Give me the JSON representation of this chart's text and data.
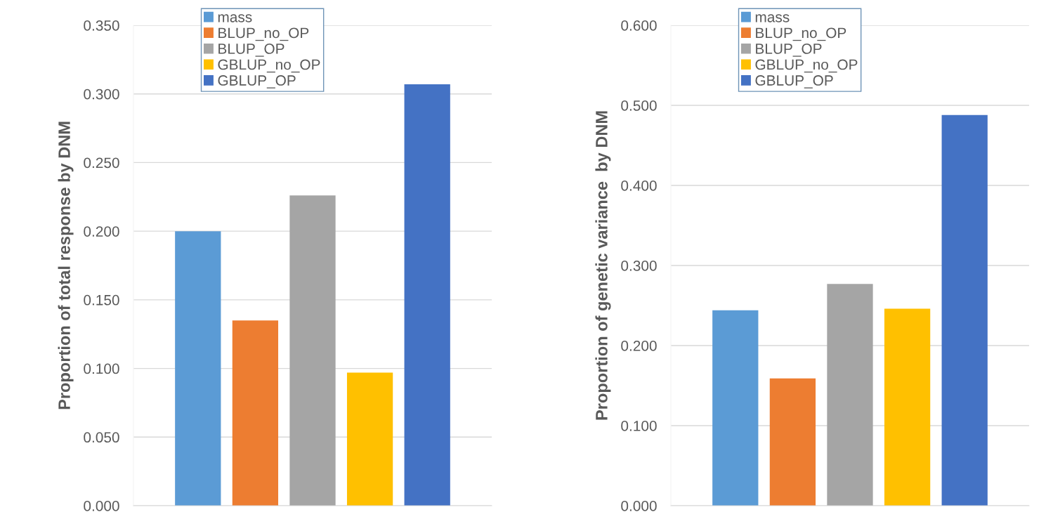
{
  "chart_data": [
    {
      "type": "bar",
      "ylabel": "Proportion of total response by DNM",
      "categories": [
        null
      ],
      "ylim": [
        0,
        0.35
      ],
      "yticks": [
        {
          "value": 0,
          "label": "0.000"
        },
        {
          "value": 0.05,
          "label": "0.050"
        },
        {
          "value": 0.1,
          "label": "0.100"
        },
        {
          "value": 0.15,
          "label": "0.150"
        },
        {
          "value": 0.2,
          "label": "0.200"
        },
        {
          "value": 0.25,
          "label": "0.250"
        },
        {
          "value": 0.3,
          "label": "0.300"
        },
        {
          "value": 0.35,
          "label": "0.350"
        }
      ],
      "grid": "y",
      "legend": "top",
      "series": [
        {
          "name": "mass",
          "color": "#5b9bd5",
          "values": [
            0.2
          ]
        },
        {
          "name": "BLUP_no_OP",
          "color": "#ed7d31",
          "values": [
            0.135
          ]
        },
        {
          "name": "BLUP_OP",
          "color": "#a5a5a5",
          "values": [
            0.226
          ]
        },
        {
          "name": "GBLUP_no_OP",
          "color": "#ffc000",
          "values": [
            0.097
          ]
        },
        {
          "name": "GBLUP_OP",
          "color": "#4472c4",
          "values": [
            0.307
          ]
        }
      ]
    },
    {
      "type": "bar",
      "ylabel": "Proportion of genetic variance  by DNM",
      "categories": [
        null
      ],
      "ylim": [
        0,
        0.6
      ],
      "yticks": [
        {
          "value": 0,
          "label": "0.000"
        },
        {
          "value": 0.1,
          "label": "0.100"
        },
        {
          "value": 0.2,
          "label": "0.200"
        },
        {
          "value": 0.3,
          "label": "0.300"
        },
        {
          "value": 0.4,
          "label": "0.400"
        },
        {
          "value": 0.5,
          "label": "0.500"
        },
        {
          "value": 0.6,
          "label": "0.600"
        }
      ],
      "grid": "y",
      "legend": "top",
      "series": [
        {
          "name": "mass",
          "color": "#5b9bd5",
          "values": [
            0.244
          ]
        },
        {
          "name": "BLUP_no_OP",
          "color": "#ed7d31",
          "values": [
            0.159
          ]
        },
        {
          "name": "BLUP_OP",
          "color": "#a5a5a5",
          "values": [
            0.277
          ]
        },
        {
          "name": "GBLUP_no_OP",
          "color": "#ffc000",
          "values": [
            0.246
          ]
        },
        {
          "name": "GBLUP_OP",
          "color": "#4472c4",
          "values": [
            0.488
          ]
        }
      ]
    }
  ]
}
